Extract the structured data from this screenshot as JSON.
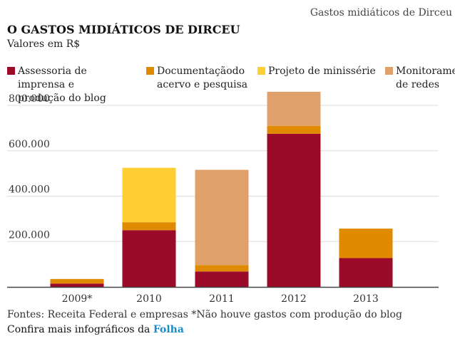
{
  "header": {
    "top_label": "Gastos midiáticos de Dirceu",
    "title": "O GASTOS MIDIÁTICOS DE DIRCEU",
    "subtitle": "Valores em R$"
  },
  "footer": {
    "sources": "Fontes: Receita Federal e empresas *Não houve gastos com produção do blog",
    "more_text": "Confira mais infográficos da",
    "brand_link": "Folha"
  },
  "chart_data": {
    "type": "bar",
    "stacked": true,
    "categories": [
      "2009*",
      "2010",
      "2011",
      "2012",
      "2013"
    ],
    "series": [
      {
        "name": "Assessoria de imprensa e produção do blog",
        "color": "#9b0a28",
        "values": [
          15000,
          250000,
          68000,
          675000,
          127000
        ]
      },
      {
        "name": "Documentaçãodo acervo e pesquisa",
        "color": "#e08a00",
        "values": [
          20000,
          35000,
          28000,
          35000,
          130000
        ]
      },
      {
        "name": "Projeto de minissérie",
        "color": "#fece33",
        "values": [
          0,
          240000,
          0,
          0,
          0
        ]
      },
      {
        "name": "Monitoramento de redes sociais",
        "color": "#e0a06a",
        "values": [
          0,
          0,
          420000,
          150000,
          0
        ]
      }
    ],
    "yticks": [
      200000,
      400000,
      600000,
      800000
    ],
    "ytick_labels": [
      "200.000",
      "400.000",
      "600.000",
      "800.000"
    ],
    "ylim": [
      0,
      800000
    ],
    "grid": true,
    "legend_position": "top"
  }
}
